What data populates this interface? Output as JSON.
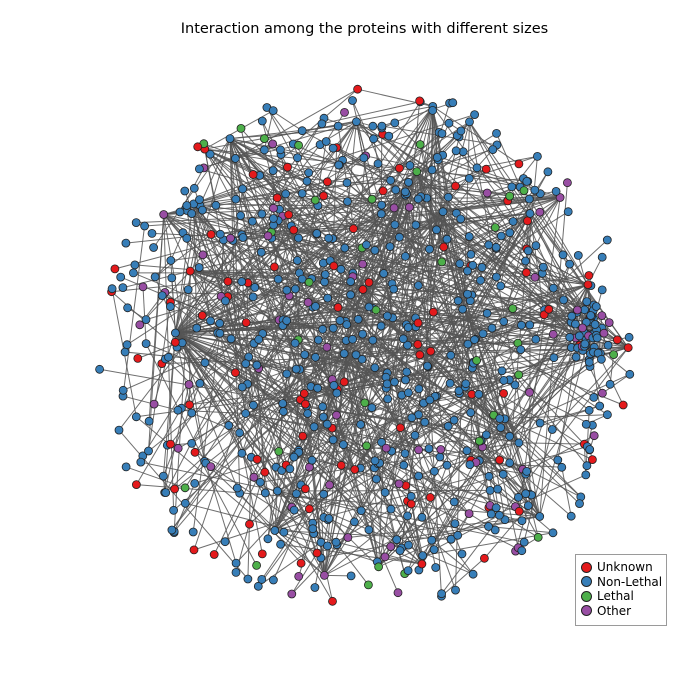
{
  "title": "Interaction among the proteins with different sizes",
  "legend": [
    {
      "label": "Unknown",
      "color": "#e41a1c"
    },
    {
      "label": "Non-Lethal",
      "color": "#377eb8"
    },
    {
      "label": "Lethal",
      "color": "#4daf4a"
    },
    {
      "label": "Other",
      "color": "#984ea3"
    }
  ],
  "edge_color": "#555555",
  "node_outline_color": "#222222"
}
